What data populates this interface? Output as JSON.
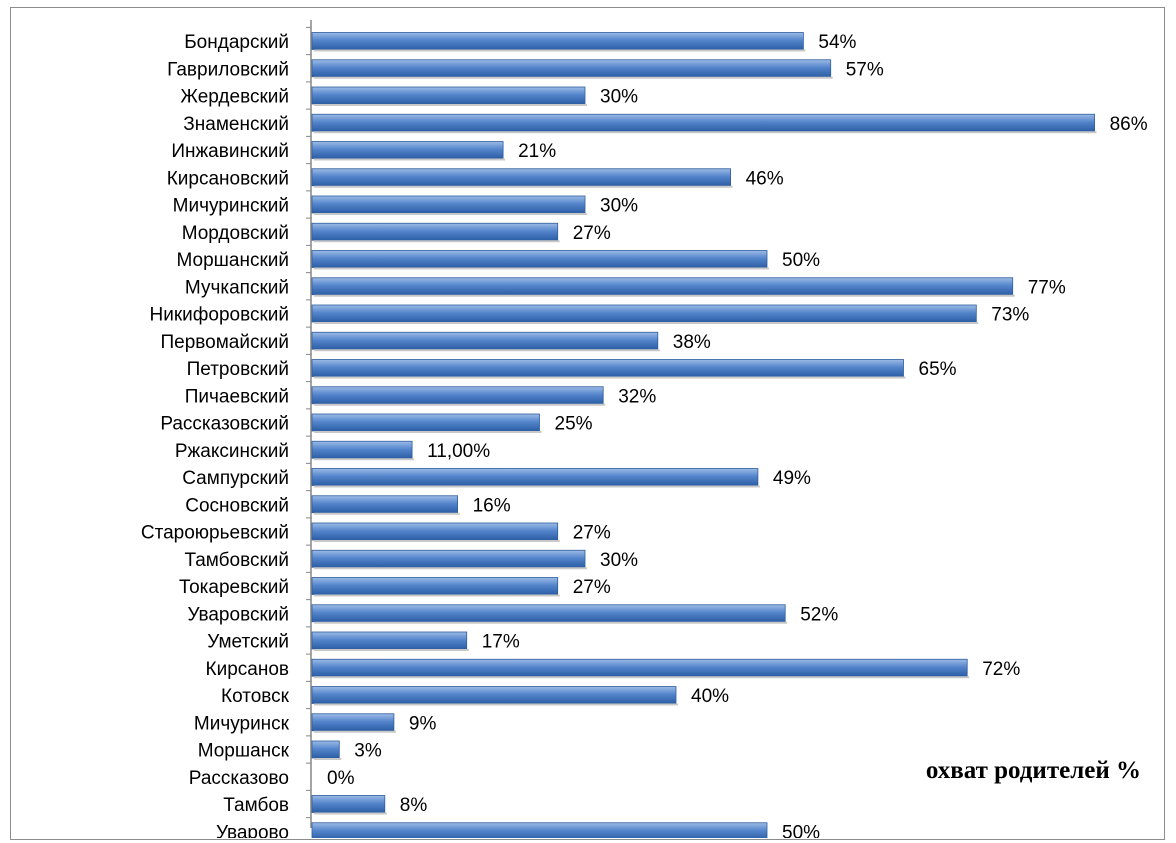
{
  "chart_data": {
    "type": "bar",
    "orientation": "horizontal",
    "categories": [
      "Бондарский",
      "Гавриловский",
      "Жердевский",
      "Знаменский",
      "Инжавинский",
      "Кирсановский",
      "Мичуринский",
      "Мордовский",
      "Моршанский",
      "Мучкапский",
      "Никифоровский",
      "Первомайский",
      "Петровский",
      "Пичаевский",
      "Рассказовский",
      "Ржаксинский",
      "Сампурский",
      "Сосновский",
      "Староюрьевский",
      "Тамбовский",
      "Токаревский",
      "Уваровский",
      "Уметский",
      "Кирсанов",
      "Котовск",
      "Мичуринск",
      "Моршанск",
      "Рассказово",
      "Тамбов",
      "Уварово"
    ],
    "series": [
      {
        "name": "охват родителей %",
        "values": [
          54,
          57,
          30,
          86,
          21,
          46,
          30,
          27,
          50,
          77,
          73,
          38,
          65,
          32,
          25,
          11,
          49,
          16,
          27,
          30,
          27,
          52,
          17,
          72,
          40,
          9,
          3,
          0,
          8,
          50
        ],
        "labels": [
          "54%",
          "57%",
          "30%",
          "86%",
          "21%",
          "46%",
          "30%",
          "27%",
          "50%",
          "77%",
          "73%",
          "38%",
          "65%",
          "32%",
          "25%",
          "11,00%",
          "49%",
          "16%",
          "27%",
          "30%",
          "27%",
          "52%",
          "17%",
          "72%",
          "40%",
          "9%",
          "3%",
          "0%",
          "8%",
          "50%"
        ]
      }
    ],
    "xlim": [
      0,
      86
    ],
    "grid": false,
    "legend": "right",
    "bar_color": "#4a7ec4"
  }
}
